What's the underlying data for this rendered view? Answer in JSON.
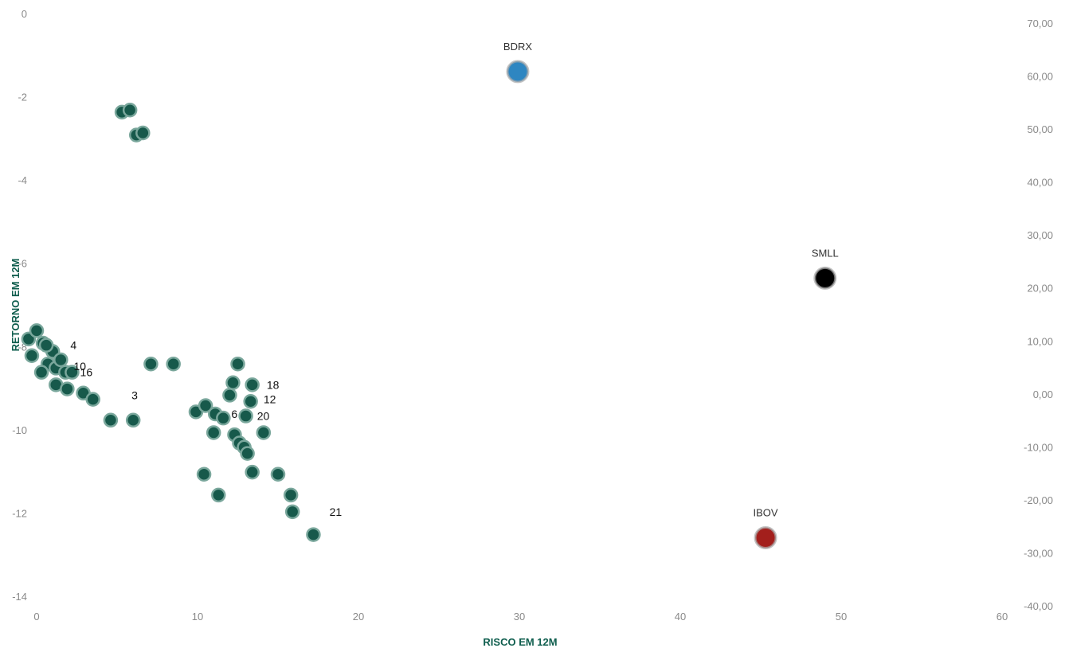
{
  "chart_data": {
    "type": "scatter",
    "xlabel": "RISCO EM 12M",
    "ylabel": "RETORNO EM 12M",
    "xlim": [
      0,
      60
    ],
    "ylim": [
      -14,
      0
    ],
    "y2lim": [
      -40,
      70
    ],
    "x_ticks": [
      "0",
      "10",
      "20",
      "30",
      "40",
      "50",
      "60"
    ],
    "y_ticks": [
      "0",
      "-2",
      "-4",
      "-6",
      "-8",
      "-10",
      "-12",
      "-14"
    ],
    "y2_ticks": [
      "70,00",
      "60,00",
      "50,00",
      "40,00",
      "30,00",
      "20,00",
      "10,00",
      "0,00",
      "-10,00",
      "-20,00",
      "-30,00",
      "-40,00"
    ],
    "grid": false,
    "legend": "none",
    "colors": {
      "funds": "#17594b",
      "fund_halo": "#7aa79c",
      "BDRX": "#2e86c1",
      "SMLL": "#000000",
      "IBOV": "#a31f1c",
      "axis_title": "#0f5e4e"
    },
    "funds": [
      {
        "x": 5.3,
        "y": -2.35
      },
      {
        "x": 5.8,
        "y": -2.3
      },
      {
        "x": 6.2,
        "y": -2.9
      },
      {
        "x": 6.6,
        "y": -2.85
      },
      {
        "x": -0.5,
        "y": -7.8
      },
      {
        "x": -0.3,
        "y": -8.2
      },
      {
        "x": 0.0,
        "y": -7.6
      },
      {
        "x": 0.4,
        "y": -7.9
      },
      {
        "x": 0.7,
        "y": -8.4
      },
      {
        "x": 0.3,
        "y": -8.6
      },
      {
        "x": 1.0,
        "y": -8.1
      },
      {
        "x": 1.2,
        "y": -8.5
      },
      {
        "x": 1.5,
        "y": -8.3
      },
      {
        "x": 0.6,
        "y": -7.95
      },
      {
        "x": 1.8,
        "y": -8.6
      },
      {
        "x": 2.2,
        "y": -8.6
      },
      {
        "x": 1.2,
        "y": -8.9
      },
      {
        "x": 1.9,
        "y": -9.0
      },
      {
        "x": 2.9,
        "y": -9.1
      },
      {
        "x": 3.5,
        "y": -9.25
      },
      {
        "x": 4.6,
        "y": -9.75
      },
      {
        "x": 6.0,
        "y": -9.75
      },
      {
        "x": 7.1,
        "y": -8.4
      },
      {
        "x": 8.5,
        "y": -8.4
      },
      {
        "x": 9.9,
        "y": -9.55
      },
      {
        "x": 10.5,
        "y": -9.4
      },
      {
        "x": 11.1,
        "y": -9.6
      },
      {
        "x": 11.6,
        "y": -9.7
      },
      {
        "x": 11.0,
        "y": -10.05
      },
      {
        "x": 11.3,
        "y": -11.55
      },
      {
        "x": 10.4,
        "y": -11.05
      },
      {
        "x": 12.0,
        "y": -9.15
      },
      {
        "x": 12.2,
        "y": -8.85
      },
      {
        "x": 12.5,
        "y": -8.4
      },
      {
        "x": 12.3,
        "y": -10.1
      },
      {
        "x": 12.6,
        "y": -10.3
      },
      {
        "x": 12.9,
        "y": -10.4
      },
      {
        "x": 13.1,
        "y": -10.55
      },
      {
        "x": 13.0,
        "y": -9.65
      },
      {
        "x": 13.3,
        "y": -9.3
      },
      {
        "x": 13.4,
        "y": -8.9
      },
      {
        "x": 13.4,
        "y": -11.0
      },
      {
        "x": 14.1,
        "y": -10.05
      },
      {
        "x": 15.0,
        "y": -11.05
      },
      {
        "x": 15.8,
        "y": -11.55
      },
      {
        "x": 15.9,
        "y": -11.95
      },
      {
        "x": 17.2,
        "y": -12.5
      }
    ],
    "point_labels": [
      {
        "text": "3",
        "x": 5.9,
        "y": -9.15
      },
      {
        "text": "6",
        "x": 12.1,
        "y": -9.6
      },
      {
        "text": "18",
        "x": 14.3,
        "y": -8.9
      },
      {
        "text": "12",
        "x": 14.1,
        "y": -9.25
      },
      {
        "text": "20",
        "x": 13.7,
        "y": -9.65
      },
      {
        "text": "16",
        "x": 2.7,
        "y": -8.6
      },
      {
        "text": "10",
        "x": 2.3,
        "y": -8.45
      },
      {
        "text": "4",
        "x": 2.1,
        "y": -7.95
      },
      {
        "text": "21",
        "x": 18.2,
        "y": -11.95
      }
    ],
    "benchmarks": [
      {
        "name": "BDRX",
        "x": 29.9,
        "y2": 61.0
      },
      {
        "name": "SMLL",
        "x": 49.0,
        "y2": 22.0
      },
      {
        "name": "IBOV",
        "x": 45.3,
        "y2": -27.0
      }
    ]
  }
}
